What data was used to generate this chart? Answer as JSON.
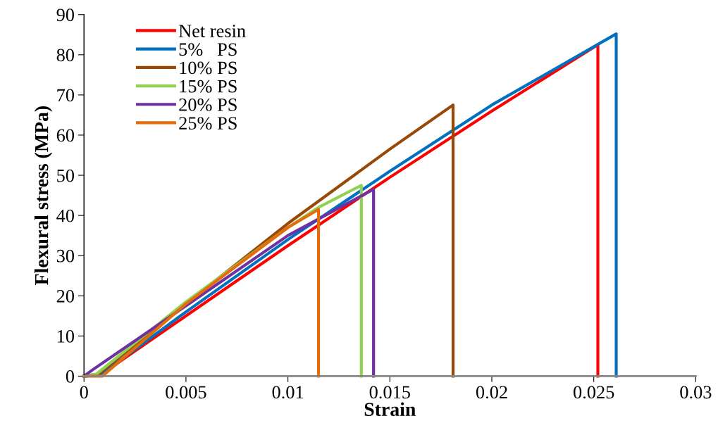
{
  "chart_data": {
    "type": "line",
    "xlabel": "Strain",
    "ylabel": "Flexural stress (MPa)",
    "xlim": [
      0,
      0.03
    ],
    "xticks": [
      0,
      0.005,
      0.01,
      0.015,
      0.02,
      0.025,
      0.03
    ],
    "ylim": [
      0,
      90
    ],
    "yticks": [
      0,
      10,
      20,
      30,
      40,
      50,
      60,
      70,
      80,
      90
    ],
    "grid": false,
    "legend": "top left",
    "marker": "none",
    "line_style": "solid",
    "series": [
      {
        "name": "Net resin",
        "color": "#ff0000",
        "x": [
          0,
          0.0008,
          0.005,
          0.01,
          0.015,
          0.02,
          0.0252,
          0.0252
        ],
        "values": [
          0,
          0.3,
          15,
          32.5,
          49.5,
          66,
          82.5,
          0
        ]
      },
      {
        "name": "5%   PS",
        "color": "#0070c0",
        "x": [
          0,
          0.0008,
          0.005,
          0.01,
          0.015,
          0.02,
          0.0261,
          0.0261
        ],
        "values": [
          0,
          0.3,
          16,
          34,
          51,
          67.5,
          85.2,
          0
        ]
      },
      {
        "name": "10% PS",
        "color": "#984807",
        "x": [
          0,
          0.0007,
          0.005,
          0.01,
          0.015,
          0.0181,
          0.0181
        ],
        "values": [
          0,
          0.5,
          18,
          38,
          56.5,
          67.5,
          0
        ]
      },
      {
        "name": "15% PS",
        "color": "#92d050",
        "x": [
          0,
          0.0006,
          0.005,
          0.01,
          0.0115,
          0.0136,
          0.0136
        ],
        "values": [
          0,
          0.5,
          18.5,
          37,
          42,
          47.5,
          0
        ]
      },
      {
        "name": "20% PS",
        "color": "#7030a0",
        "x": [
          0,
          0.0004,
          0.005,
          0.01,
          0.0142,
          0.0142
        ],
        "values": [
          0,
          1.5,
          17.5,
          35,
          46.5,
          0
        ]
      },
      {
        "name": "25% PS",
        "color": "#e46c0a",
        "x": [
          0,
          0.0009,
          0.005,
          0.01,
          0.0115,
          0.0115
        ],
        "values": [
          0,
          0,
          18,
          37,
          41.5,
          0
        ]
      }
    ]
  }
}
